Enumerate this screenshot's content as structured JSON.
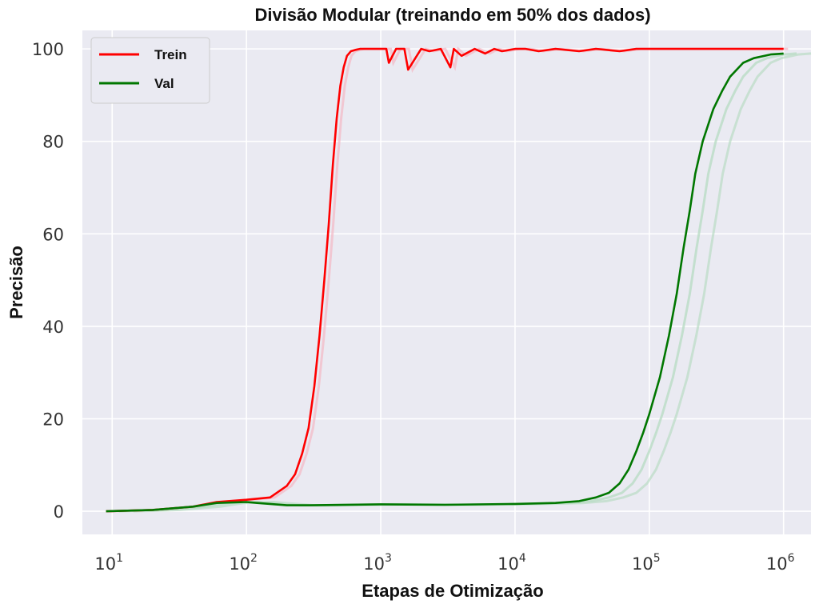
{
  "chart_data": {
    "type": "line",
    "title": "Divisão Modular (treinando em 50% dos dados)",
    "xlabel": "Etapas de Otimização",
    "ylabel": "Precisão",
    "xscale": "log",
    "xlim": [
      6,
      1600000
    ],
    "ylim": [
      -5,
      104
    ],
    "grid": true,
    "legend_position": "top-left",
    "x_ticks": [
      10,
      100,
      1000,
      10000,
      100000,
      1000000
    ],
    "x_tick_labels": [
      {
        "base": "10",
        "exp": "1"
      },
      {
        "base": "10",
        "exp": "2"
      },
      {
        "base": "10",
        "exp": "3"
      },
      {
        "base": "10",
        "exp": "4"
      },
      {
        "base": "10",
        "exp": "5"
      },
      {
        "base": "10",
        "exp": "6"
      }
    ],
    "y_ticks": [
      0,
      20,
      40,
      60,
      80,
      100
    ],
    "y_tick_labels": [
      "0",
      "20",
      "40",
      "60",
      "80",
      "100"
    ],
    "colors": {
      "background": "#eaeaf2",
      "grid": "#ffffff",
      "trein": "#ff0000",
      "val": "#007700",
      "trein_shadow": "#f4b8c4",
      "val_shadow": "#b9dcc4"
    },
    "series": [
      {
        "name": "Trein",
        "color": "#ff0000",
        "x": [
          9,
          20,
          40,
          60,
          100,
          150,
          200,
          230,
          260,
          290,
          320,
          350,
          380,
          410,
          440,
          470,
          500,
          530,
          560,
          600,
          650,
          700,
          800,
          900,
          1000,
          1100,
          1150,
          1300,
          1500,
          1600,
          2000,
          2300,
          2800,
          3300,
          3500,
          4000,
          5000,
          6000,
          7000,
          8000,
          10000,
          12000,
          15000,
          20000,
          30000,
          40000,
          60000,
          80000,
          100000,
          200000,
          400000,
          1000000
        ],
        "y": [
          0,
          0.3,
          1,
          2,
          2.5,
          3,
          5.5,
          8,
          12.5,
          18,
          27,
          38,
          50,
          62,
          75,
          85,
          92,
          96,
          98.5,
          99.5,
          99.8,
          100,
          100,
          100,
          100,
          100,
          97,
          100,
          100,
          95.5,
          100,
          99.5,
          100,
          96,
          100,
          98.5,
          100,
          99,
          100,
          99.5,
          100,
          100,
          99.5,
          100,
          99.5,
          100,
          99.5,
          100,
          100,
          100,
          100,
          100
        ]
      },
      {
        "name": "Val",
        "color": "#007700",
        "x": [
          9,
          20,
          40,
          60,
          100,
          120,
          200,
          300,
          1000,
          3000,
          10000,
          20000,
          30000,
          40000,
          50000,
          60000,
          70000,
          80000,
          90000,
          100000,
          120000,
          140000,
          160000,
          180000,
          200000,
          220000,
          250000,
          300000,
          350000,
          400000,
          500000,
          600000,
          800000,
          1000000
        ],
        "y": [
          0,
          0.3,
          1,
          1.8,
          2,
          1.8,
          1.3,
          1.3,
          1.5,
          1.4,
          1.6,
          1.8,
          2.2,
          3,
          4,
          6,
          9,
          13,
          17,
          21,
          29,
          38,
          47,
          57,
          65,
          73,
          80,
          87,
          91,
          94,
          97,
          98,
          98.8,
          99
        ]
      }
    ]
  }
}
